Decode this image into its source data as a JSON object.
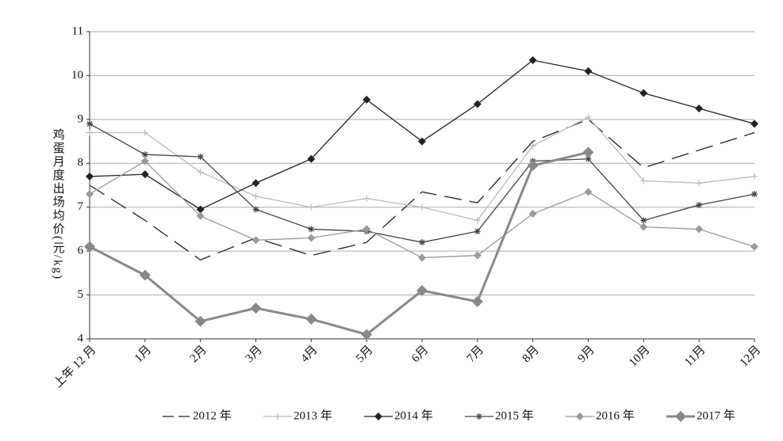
{
  "chart_data": {
    "type": "line",
    "y_label": "鸡蛋月度出场均价(元/kg)",
    "categories": [
      "上年 12 月",
      "1月",
      "2月",
      "3月",
      "4月",
      "5月",
      "6月",
      "7月",
      "8月",
      "9月",
      "10月",
      "11月",
      "12月"
    ],
    "ylim": [
      4,
      11
    ],
    "yticks": [
      4,
      5,
      6,
      7,
      8,
      9,
      10,
      11
    ],
    "grid": true,
    "legend": "bottom",
    "series": [
      {
        "name": "2012 年",
        "color": "#222222",
        "marker": "none",
        "line_style": "dashed",
        "values": [
          7.5,
          6.7,
          5.8,
          6.3,
          5.9,
          6.2,
          7.35,
          7.1,
          8.5,
          9.0,
          7.9,
          8.3,
          8.7
        ]
      },
      {
        "name": "2013 年",
        "color": "#bbbbbb",
        "marker": "plus",
        "line_style": "solid",
        "values": [
          8.7,
          8.7,
          7.8,
          7.25,
          7.0,
          7.2,
          7.0,
          6.7,
          8.4,
          9.05,
          7.6,
          7.55,
          7.7
        ]
      },
      {
        "name": "2014 年",
        "color": "#222222",
        "marker": "diamond",
        "line_style": "solid",
        "values": [
          7.7,
          7.75,
          6.95,
          7.55,
          8.1,
          9.45,
          8.5,
          9.35,
          10.35,
          10.1,
          9.6,
          9.25,
          8.9
        ]
      },
      {
        "name": "2015 年",
        "color": "#444444",
        "marker": "asterisk",
        "line_style": "solid",
        "values": [
          8.9,
          8.2,
          8.15,
          6.95,
          6.5,
          6.45,
          6.2,
          6.45,
          8.05,
          8.1,
          6.7,
          7.05,
          7.3
        ]
      },
      {
        "name": "2016 年",
        "color": "#999999",
        "marker": "diamond",
        "line_style": "solid",
        "values": [
          7.3,
          8.05,
          6.8,
          6.25,
          6.3,
          6.5,
          5.85,
          5.9,
          6.85,
          7.35,
          6.55,
          6.5,
          6.1
        ]
      },
      {
        "name": "2017 年",
        "color": "#888888",
        "marker": "diamond-large",
        "line_style": "solid",
        "values": [
          6.1,
          5.45,
          4.4,
          4.7,
          4.45,
          4.1,
          5.1,
          4.85,
          7.95,
          8.25,
          null,
          null,
          null
        ]
      }
    ]
  }
}
